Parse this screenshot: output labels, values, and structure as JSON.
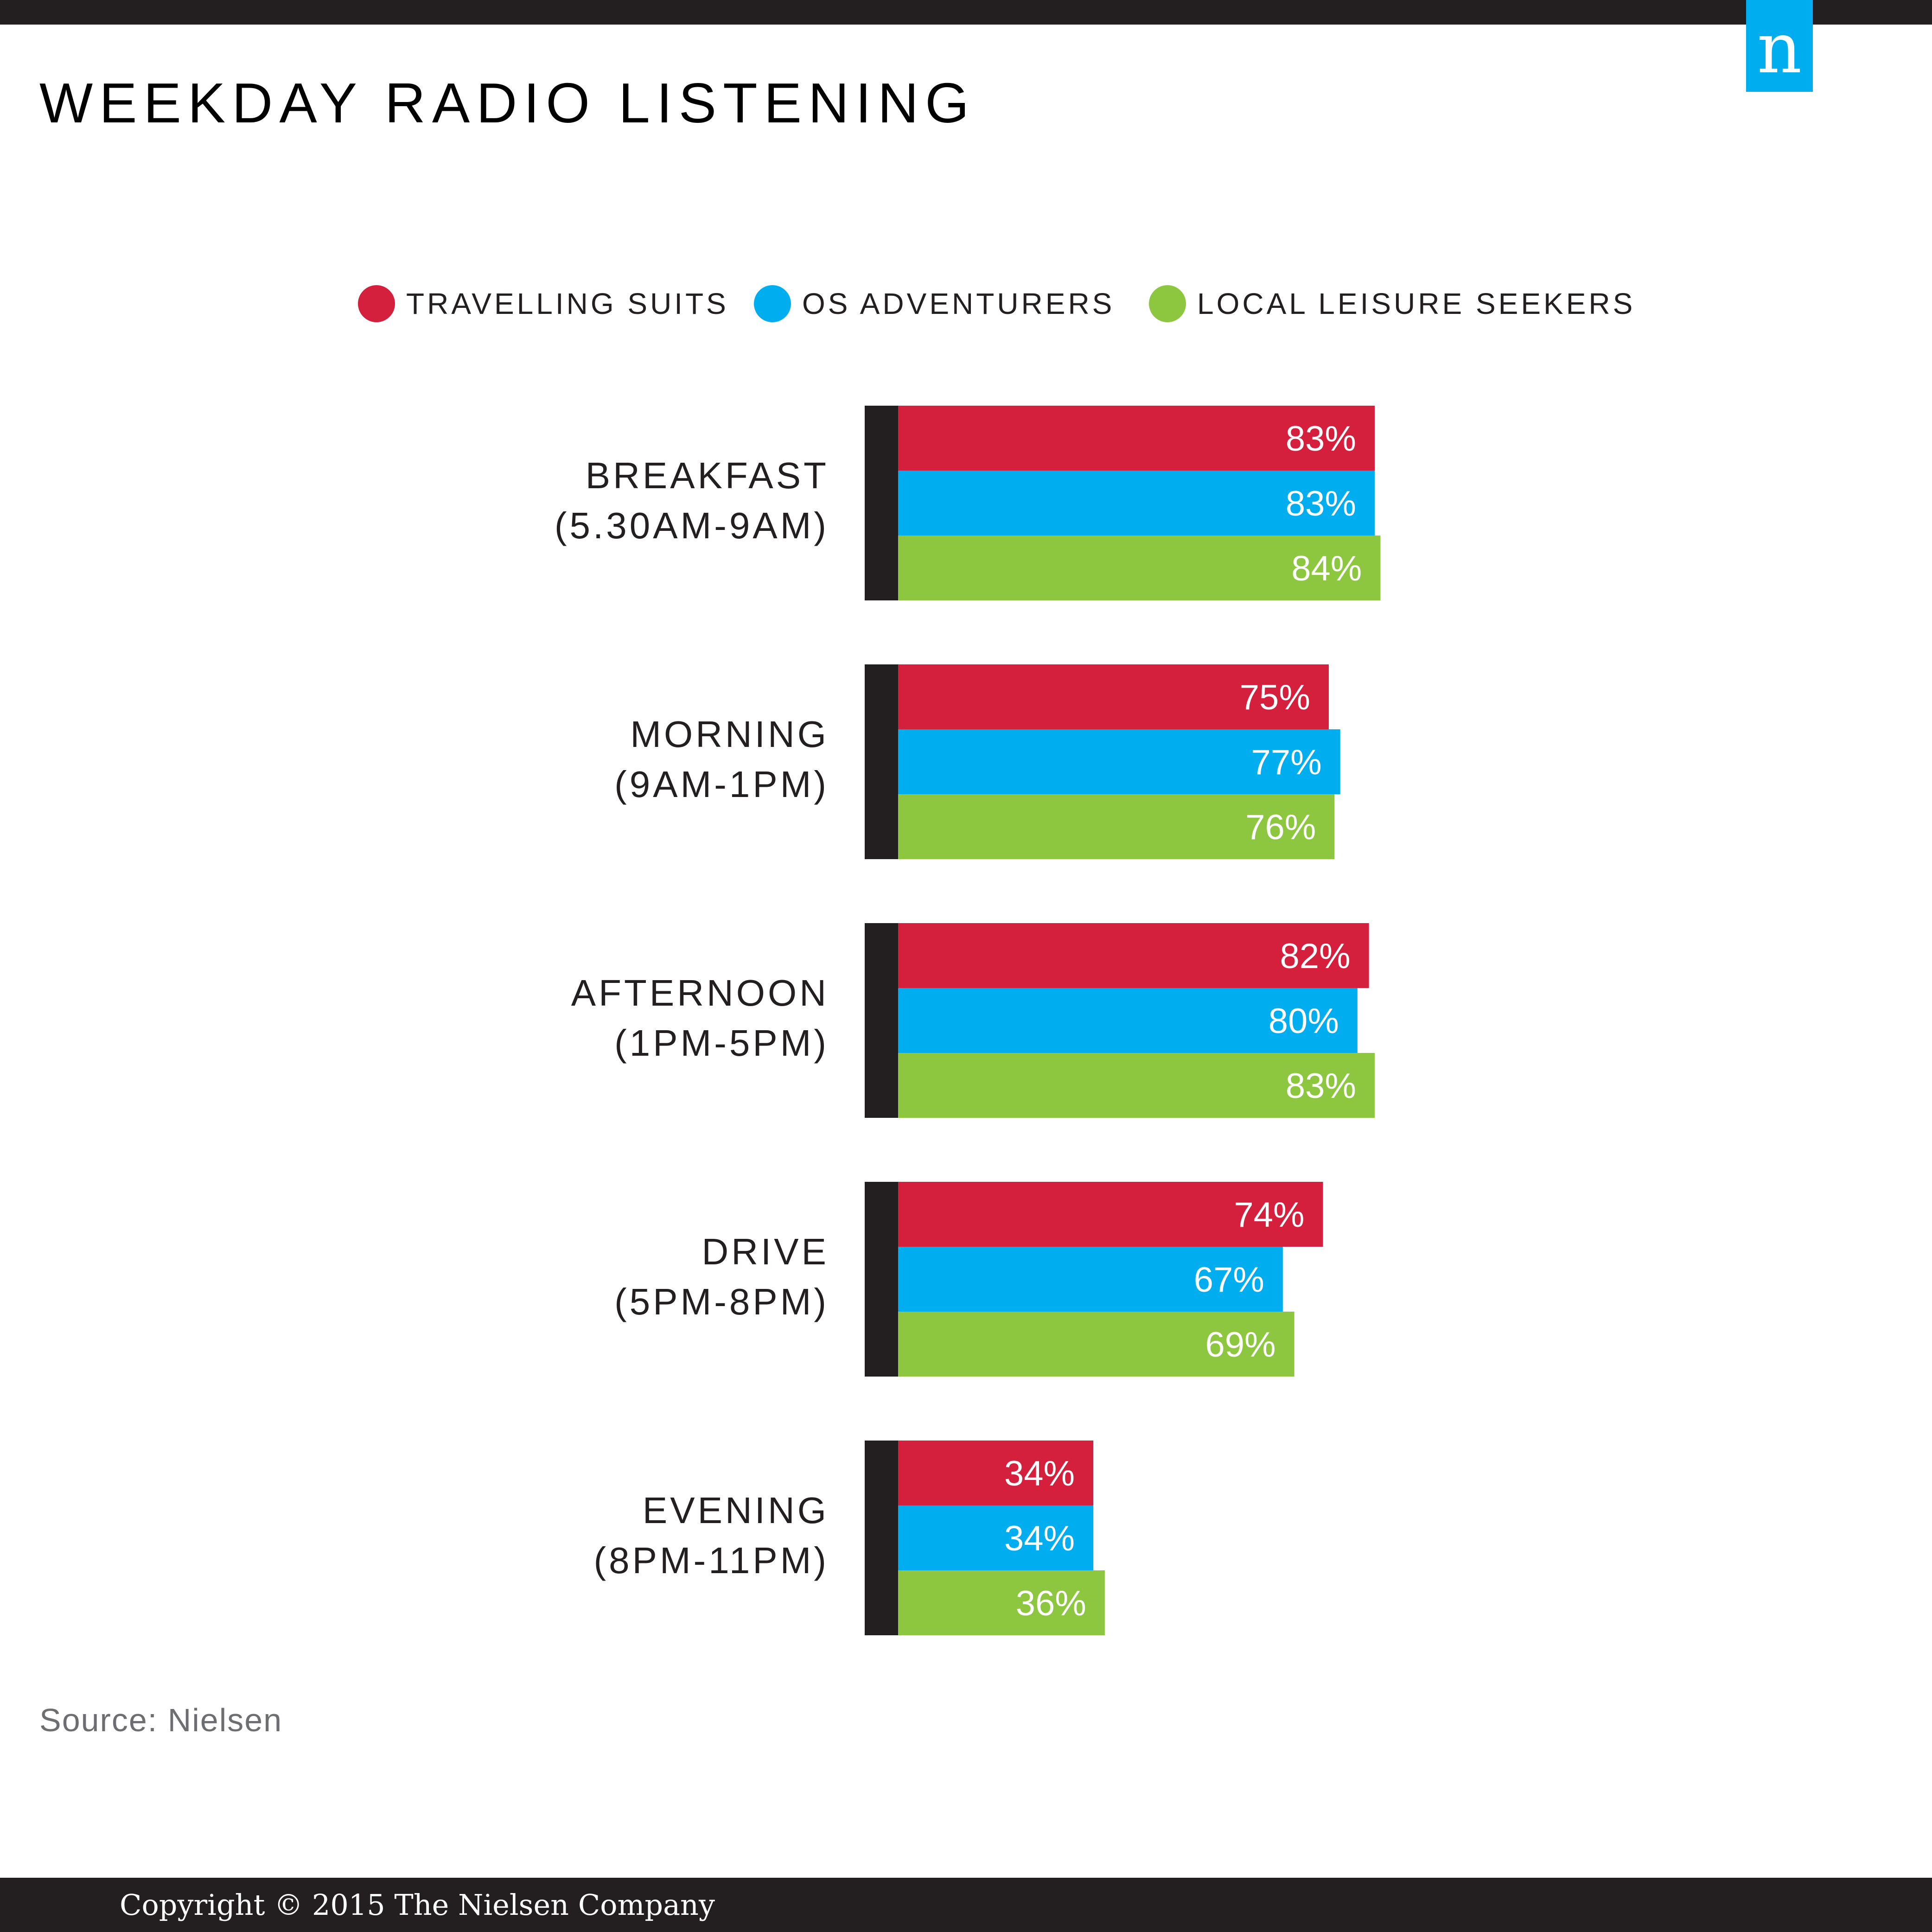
{
  "header": {
    "title": "WEEKDAY RADIO LISTENING",
    "logo_text": "n"
  },
  "legend": [
    {
      "label": "TRAVELLING SUITS",
      "color": "#d41f3d"
    },
    {
      "label": "OS ADVENTURERS",
      "color": "#00adef"
    },
    {
      "label": "LOCAL LEISURE SEEKERS",
      "color": "#8dc63f"
    }
  ],
  "chart_data": {
    "type": "bar",
    "orientation": "horizontal",
    "categories": [
      [
        "BREAKFAST",
        "(5.30AM-9AM)"
      ],
      [
        "MORNING",
        "(9AM-1PM)"
      ],
      [
        "AFTERNOON",
        "(1PM-5PM)"
      ],
      [
        "DRIVE",
        "(5PM-8PM)"
      ],
      [
        "EVENING",
        "(8PM-11PM)"
      ]
    ],
    "series": [
      {
        "name": "TRAVELLING SUITS",
        "color": "#d41f3d",
        "values": [
          83,
          75,
          82,
          74,
          34
        ]
      },
      {
        "name": "OS ADVENTURERS",
        "color": "#00adef",
        "values": [
          83,
          77,
          80,
          67,
          34
        ]
      },
      {
        "name": "LOCAL LEISURE SEEKERS",
        "color": "#8dc63f",
        "values": [
          84,
          76,
          83,
          69,
          36
        ]
      }
    ],
    "value_suffix": "%",
    "xlim": [
      0,
      100
    ],
    "grid": false,
    "legend_position": "top-center",
    "axis_color": "#231f20",
    "label_color": "#ffffff"
  },
  "footer": {
    "source": "Source: Nielsen",
    "copyright": "Copyright © 2015 The Nielsen Company",
    "bar_color": "#231f20",
    "logo_color": "#00adef"
  }
}
